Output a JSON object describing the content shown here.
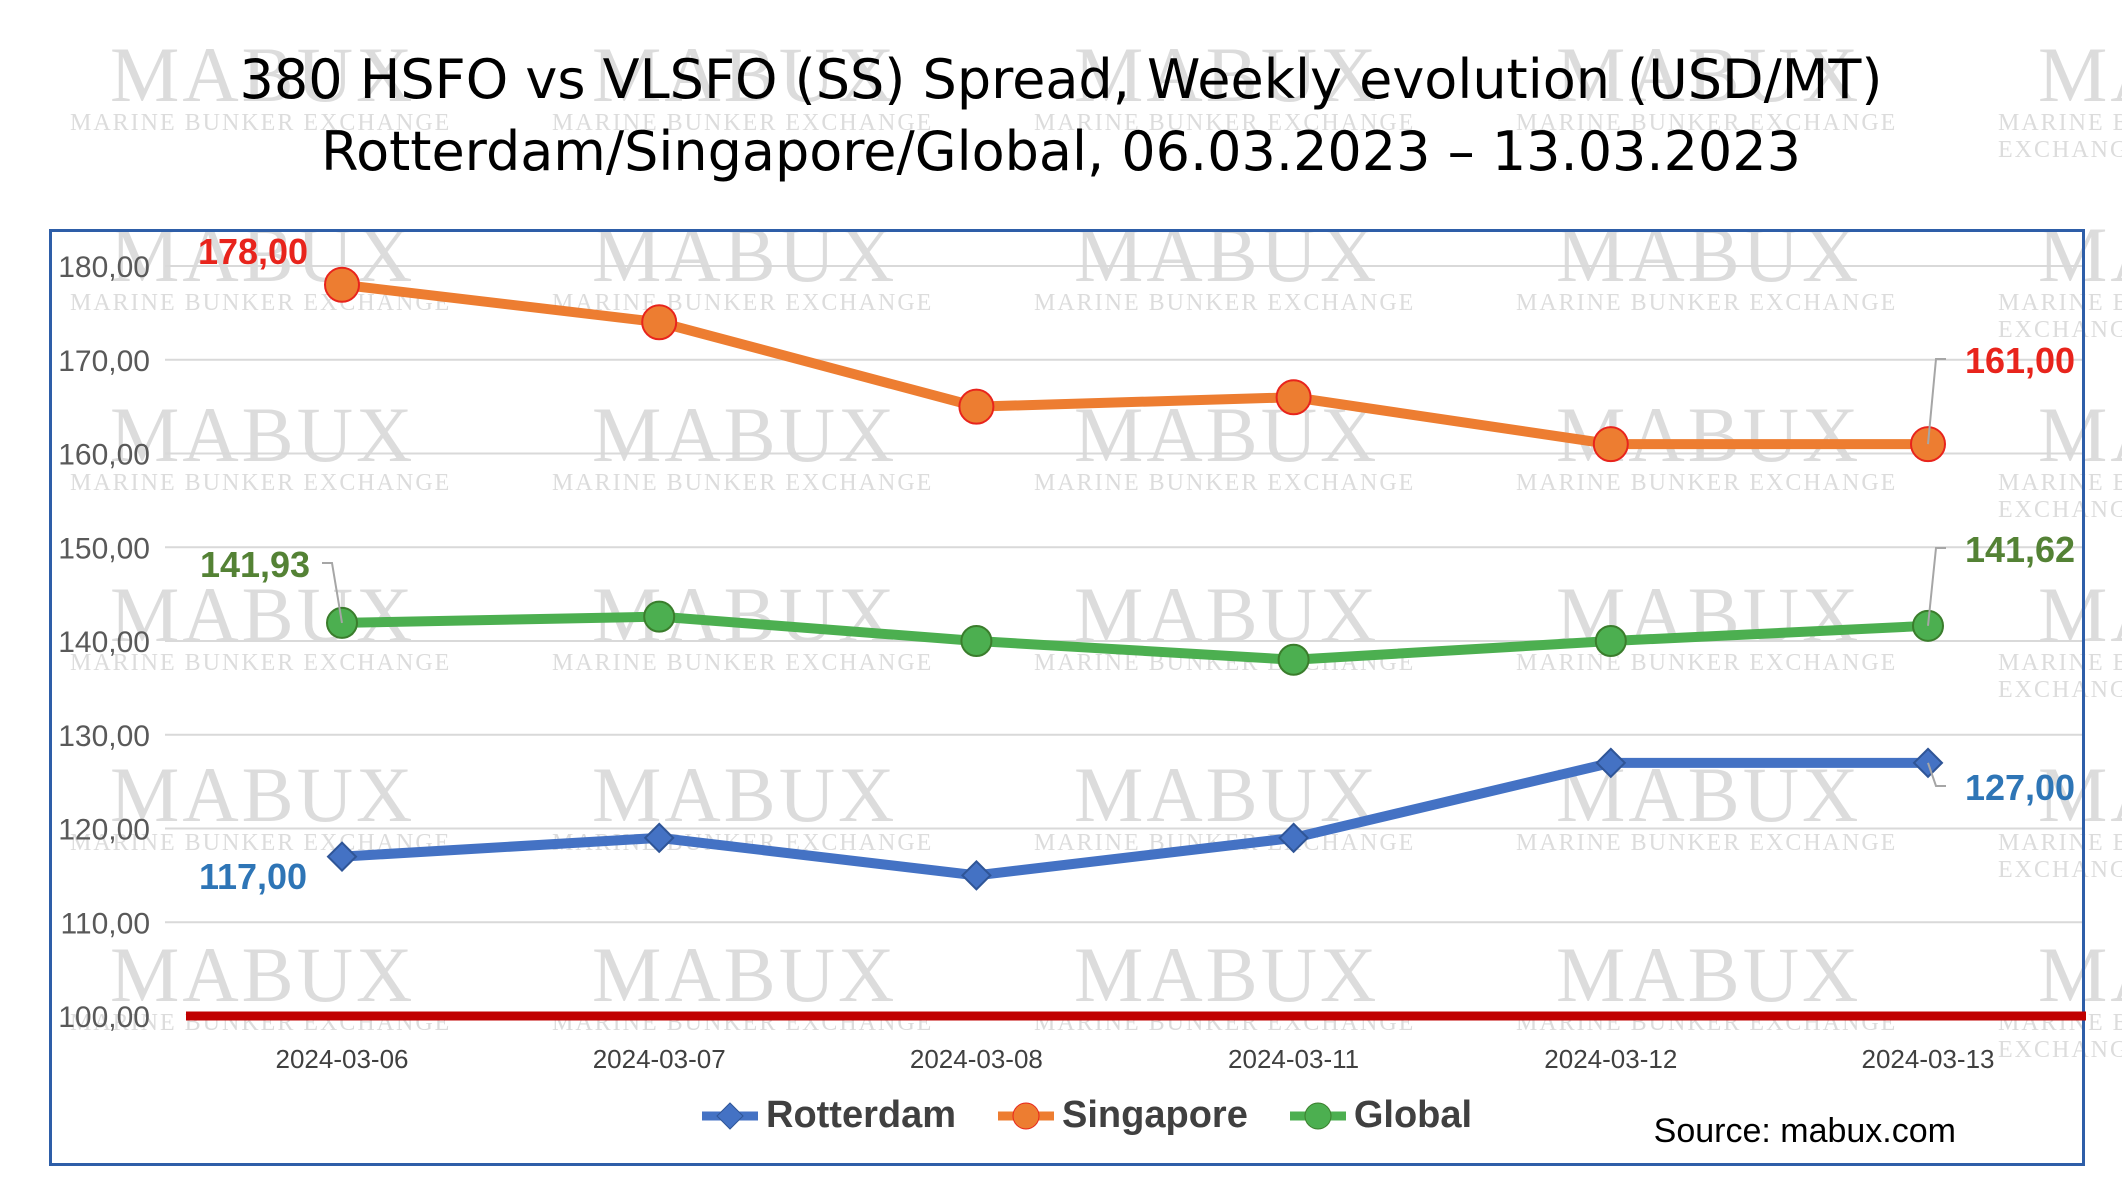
{
  "title_line1": "380 HSFO vs VLSFO (SS) Spread, Weekly evolution (USD/MT)",
  "title_line2": "Rotterdam/Singapore/Global, 06.03.2023 – 13.03.2023",
  "source": "Source: mabux.com",
  "watermark": {
    "big": "MABUX",
    "small": "MARINE BUNKER EXCHANGE"
  },
  "chart_data": {
    "type": "line",
    "title": "380 HSFO vs VLSFO (SS) Spread, Weekly evolution (USD/MT) Rotterdam/Singapore/Global, 06.03.2023 – 13.03.2023",
    "categories": [
      "2024-03-06",
      "2024-03-07",
      "2024-03-08",
      "2024-03-11",
      "2024-03-12",
      "2024-03-13"
    ],
    "ylim": [
      100,
      180
    ],
    "yticks": [
      "100,00",
      "110,00",
      "120,00",
      "130,00",
      "140,00",
      "150,00",
      "160,00",
      "170,00",
      "180,00"
    ],
    "grid": true,
    "legend": "bottom",
    "baseline": 100,
    "series": [
      {
        "name": "Rotterdam",
        "color": "#4472c4",
        "marker": "diamond",
        "values": [
          117,
          119,
          115,
          119,
          127,
          127
        ],
        "labels": [
          {
            "index": 0,
            "text": "117,00",
            "color": "#2e75b6"
          },
          {
            "index": 5,
            "text": "127,00",
            "color": "#2e75b6"
          }
        ]
      },
      {
        "name": "Singapore",
        "color": "#ed7d31",
        "marker": "circle",
        "values": [
          178,
          174,
          165,
          166,
          161,
          161
        ],
        "labels": [
          {
            "index": 0,
            "text": "178,00",
            "color": "#e8241c"
          },
          {
            "index": 5,
            "text": "161,00",
            "color": "#e8241c"
          }
        ]
      },
      {
        "name": "Global",
        "color": "#4caf50",
        "marker": "circle",
        "values": [
          141.93,
          142.6,
          140,
          138,
          140,
          141.62
        ],
        "labels": [
          {
            "index": 0,
            "text": "141,93",
            "color": "#548235"
          },
          {
            "index": 5,
            "text": "141,62",
            "color": "#548235"
          }
        ]
      }
    ],
    "baseline_color": "#c00000"
  }
}
